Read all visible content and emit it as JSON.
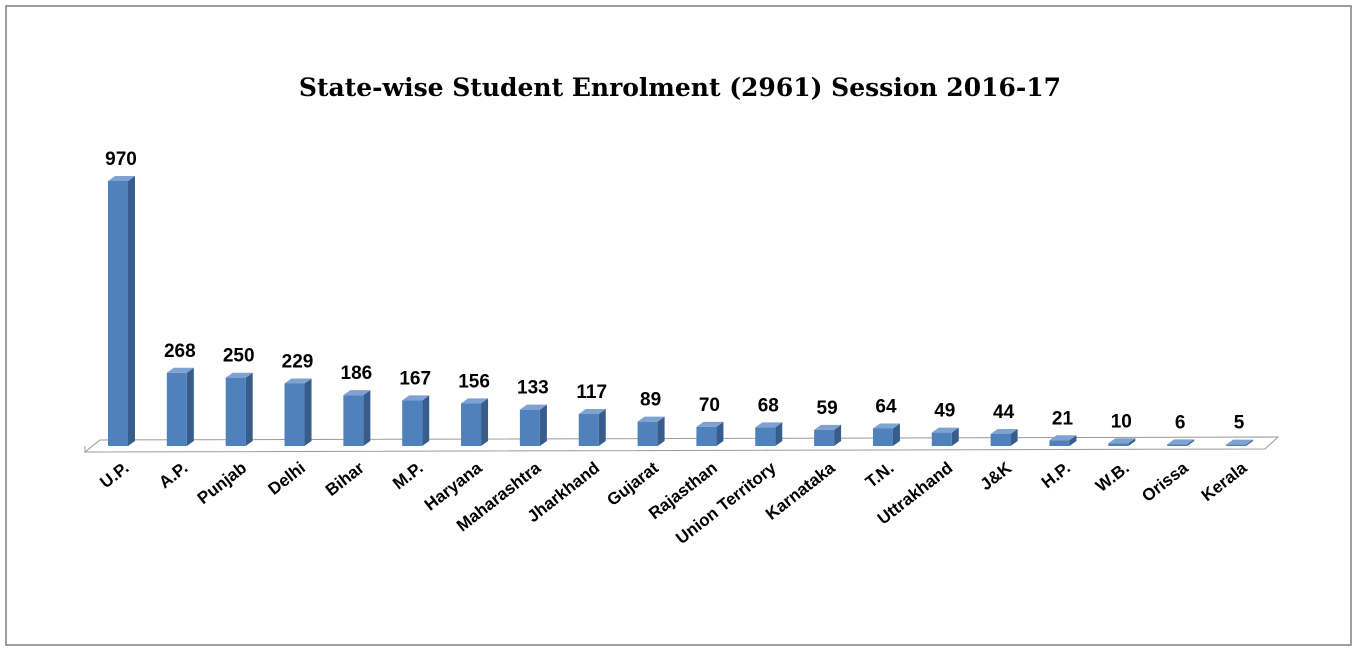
{
  "chart_data": {
    "type": "bar3d",
    "title": "State-wise Student Enrolment (2961)  Session 2016-17",
    "categories": [
      "U.P.",
      "A.P.",
      "Punjab",
      "Delhi",
      "Bihar",
      "M.P.",
      "Haryana",
      "Maharashtra",
      "Jharkhand",
      "Gujarat",
      "Rajasthan",
      "Union Territory",
      "Karnataka",
      "T.N.",
      "Uttrakhand",
      "J&K",
      "H.P.",
      "W.B.",
      "Orissa",
      "Kerala"
    ],
    "values": [
      970,
      268,
      250,
      229,
      186,
      167,
      156,
      133,
      117,
      89,
      70,
      68,
      59,
      64,
      49,
      44,
      21,
      10,
      6,
      5
    ],
    "color": "#4f81bd"
  }
}
